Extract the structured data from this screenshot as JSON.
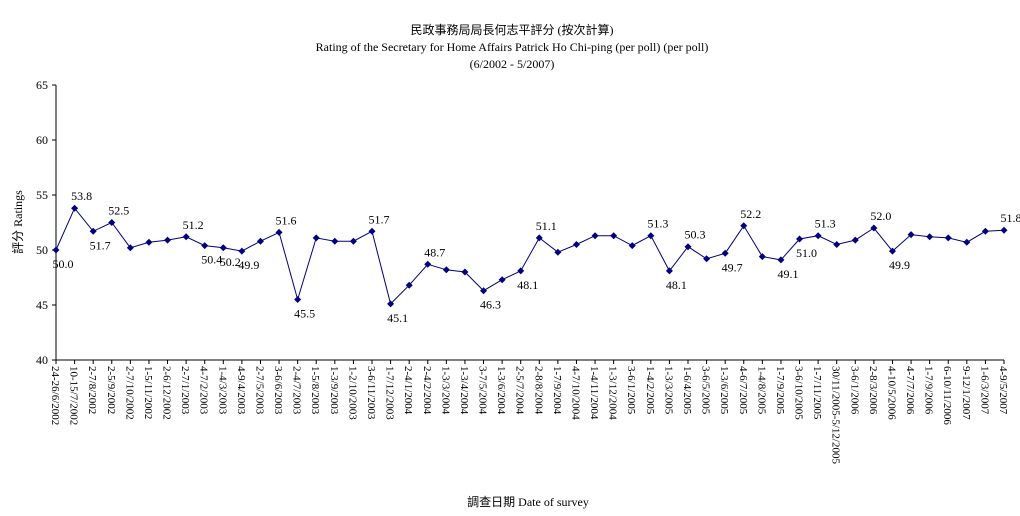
{
  "chart_data": {
    "type": "line",
    "title": "民政事務局局長何志平評分 (按次計算)",
    "subtitle": "Rating of the Secretary for Home Affairs Patrick Ho Chi-ping (per poll)  (per poll)",
    "period": "(6/2002 - 5/2007)",
    "y_label": "評分 Ratings",
    "x_label": "調查日期 Date of survey",
    "categories": [
      "24-26/6/2002",
      "10-15/7/2002",
      "2-7/8/2002",
      "2-5/9/2002",
      "2-7/10/2002",
      "1-5/11/2002",
      "2-6/12/2002",
      "2-7/1/2003",
      "4-7/2/2003",
      "1-4/3/2003",
      "4-9/4/2003",
      "2-7/5/2003",
      "3-6/6/2003",
      "2-4/7/2003",
      "1-5/8/2003",
      "1-3/9/2003",
      "1-2/10/2003",
      "3-6/11/2003",
      "1-7/12/2003",
      "2-4/1/2004",
      "2-4/2/2004",
      "1-3/3/2004",
      "1-3/4/2004",
      "3-7/5/2004",
      "1-3/6/2004",
      "2-5/7/2004",
      "2-8/8/2004",
      "1-7/9/2004",
      "4-7/10/2004",
      "1-4/11/2004",
      "1-3/12/2004",
      "3-6/1/2005",
      "1-4/2/2005",
      "1-3/3/2005",
      "1-6/4/2005",
      "3-6/5/2005",
      "1-3/6/2005",
      "4-6/7/2005",
      "1-4/8/2005",
      "1-7/9/2005",
      "3-6/10/2005",
      "1-7/11/2005",
      "30/11/2005-5/12/2005",
      "3-6/1/2006",
      "2-8/3/2006",
      "4-10/5/2006",
      "4-7/7/2006",
      "1-7/9/2006",
      "6-10/11/2006",
      "9-12/1/2007",
      "1-6/3/2007",
      "4-9/5/2007"
    ],
    "values": [
      50.0,
      53.8,
      51.7,
      52.5,
      50.2,
      50.7,
      50.9,
      51.2,
      50.4,
      50.2,
      49.9,
      50.8,
      51.6,
      45.5,
      51.1,
      50.8,
      50.8,
      51.7,
      45.1,
      46.8,
      48.7,
      48.2,
      48.0,
      46.3,
      47.3,
      48.1,
      51.1,
      49.8,
      50.5,
      51.3,
      51.3,
      50.4,
      51.3,
      48.1,
      50.3,
      49.2,
      49.7,
      52.2,
      49.4,
      49.1,
      51.0,
      51.3,
      50.5,
      50.9,
      52.0,
      49.9,
      51.4,
      51.2,
      51.1,
      50.7,
      51.7,
      51.8
    ],
    "value_labels": [
      "50.0",
      "53.8",
      "51.7",
      "52.5",
      null,
      null,
      null,
      "51.2",
      "50.4",
      "50.2",
      "49.9",
      null,
      "51.6",
      "45.5",
      null,
      null,
      null,
      "51.7",
      "45.1",
      null,
      "48.7",
      null,
      null,
      "46.3",
      null,
      "48.1",
      "51.1",
      null,
      null,
      null,
      null,
      null,
      "51.3",
      "48.1",
      "50.3",
      null,
      "49.7",
      "52.2",
      null,
      "49.1",
      "51.0",
      "51.3",
      null,
      null,
      "52.0",
      "49.9",
      null,
      null,
      null,
      null,
      null,
      "51.8"
    ],
    "color": "#000080",
    "ylim": [
      40,
      65
    ],
    "yticks": [
      40,
      45,
      50,
      55,
      60,
      65
    ],
    "grid": false
  }
}
